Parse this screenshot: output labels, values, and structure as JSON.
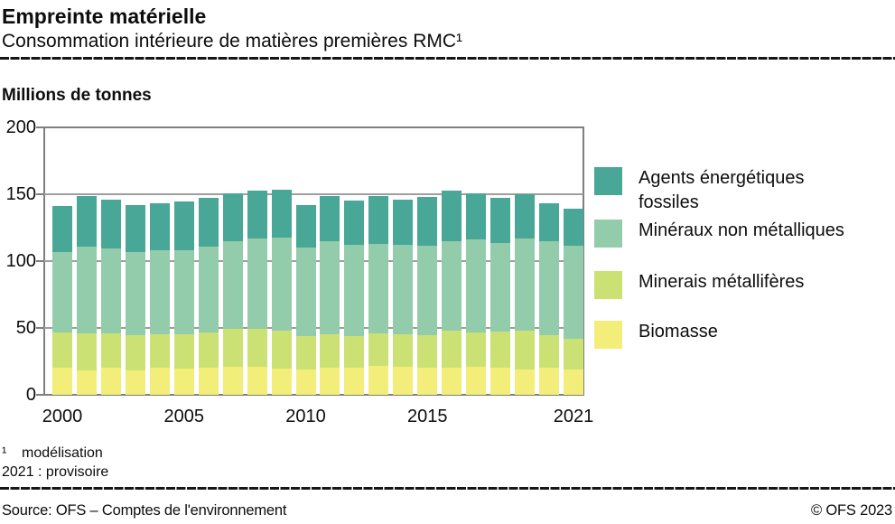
{
  "header": {
    "title": "Empreinte matérielle",
    "subtitle": "Consommation intérieure de matières premières RMC¹"
  },
  "chart_data": {
    "type": "bar",
    "stacked": true,
    "title": "Empreinte matérielle",
    "subtitle": "Consommation intérieure de matières premières RMC¹",
    "unit_label": "Millions de tonnes",
    "xlabel": "",
    "ylabel": "Millions de tonnes",
    "ylim": [
      0,
      200
    ],
    "y_ticks": [
      0,
      50,
      100,
      150,
      200
    ],
    "grid": "horizontal",
    "legend_position": "right",
    "categories": [
      2000,
      2001,
      2002,
      2003,
      2004,
      2005,
      2006,
      2007,
      2008,
      2009,
      2010,
      2011,
      2012,
      2013,
      2014,
      2015,
      2016,
      2017,
      2018,
      2019,
      2020,
      2021
    ],
    "x_tick_labels": [
      {
        "label": "2000",
        "index": 0
      },
      {
        "label": "2005",
        "index": 5
      },
      {
        "label": "2010",
        "index": 10
      },
      {
        "label": "2015",
        "index": 15
      },
      {
        "label": "2021",
        "index": 21
      }
    ],
    "series": [
      {
        "name": "Biomasse",
        "color": "#f2ee79",
        "values": [
          20.5,
          18.5,
          20,
          18,
          20,
          19.8,
          20.5,
          21,
          21,
          19.5,
          19,
          20.5,
          20.5,
          21.5,
          21,
          20,
          20.5,
          21,
          20.5,
          19,
          20,
          19
        ]
      },
      {
        "name": "Minerais métallifères",
        "color": "#cce173",
        "values": [
          26,
          27.5,
          26,
          26.5,
          25.5,
          25.5,
          26,
          28.5,
          28.5,
          28.5,
          25,
          25,
          23.5,
          24.5,
          24.5,
          24.5,
          27.5,
          25.5,
          26.5,
          29,
          24.5,
          23
        ]
      },
      {
        "name": "Minéraux non métalliques",
        "color": "#93ccab",
        "values": [
          60.5,
          64.5,
          63.5,
          62,
          62.5,
          63,
          64.5,
          65.5,
          67.5,
          69.5,
          66,
          69.5,
          68,
          67,
          66.5,
          67,
          67,
          69.5,
          66.5,
          69,
          70.5,
          69.5
        ]
      },
      {
        "name": "Agents énergétiques fossiles",
        "color": "#48a797",
        "values": [
          34.5,
          38.5,
          36.5,
          35.5,
          35.5,
          36.5,
          36.5,
          36,
          36,
          36,
          32,
          33.5,
          33,
          36,
          34,
          36.5,
          38,
          35,
          33.5,
          33,
          28,
          27.5
        ]
      }
    ]
  },
  "footnotes": {
    "line1_marker": "¹",
    "line1_text": "modélisation",
    "line2": "2021 : provisoire"
  },
  "source": {
    "left": "Source: OFS – Comptes de l'environnement",
    "right": "© OFS 2023"
  }
}
